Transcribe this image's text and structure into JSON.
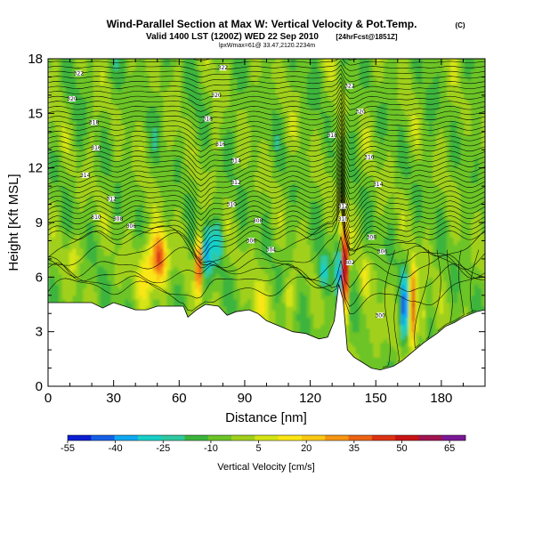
{
  "chart_data": {
    "type": "heatmap",
    "title": "Wind-Parallel Section at Max W: Vertical Velocity & Pot.Temp.",
    "title_mark": "(C)",
    "subtitle_valid": "Valid 1400 LST (1200Z) WED 22 Sep 2010",
    "subtitle_fcst": "[24hrFcst@1851Z]",
    "subtitle_small": "lpxWmax=61@ 33.47,2120.2234m",
    "xlabel": "Distance [nm]",
    "ylabel": "Height [Kft MSL]",
    "x_ticks": [
      0,
      30,
      60,
      90,
      120,
      150,
      180
    ],
    "y_ticks": [
      0,
      3,
      6,
      9,
      12,
      15,
      18
    ],
    "xlim": [
      0,
      200
    ],
    "ylim": [
      0,
      18
    ],
    "colorbar": {
      "label": "Vertical Velocity [cm/s]",
      "tick_labels": [
        "-55",
        "-40",
        "-25",
        "-10",
        "5",
        "20",
        "35",
        "50",
        "65"
      ],
      "tick_values": [
        -55,
        -40,
        -25,
        -10,
        5,
        20,
        35,
        50,
        65
      ],
      "range": [
        -55,
        70
      ],
      "colors": [
        "#0a1ed2",
        "#1660e6",
        "#10a8f0",
        "#18d0c8",
        "#30c8a0",
        "#3cb43c",
        "#6cc428",
        "#a0d01c",
        "#d4e414",
        "#fae614",
        "#fac814",
        "#f59614",
        "#eb6414",
        "#dc3214",
        "#c81414",
        "#a01450",
        "#7a1896"
      ]
    },
    "terrain": [
      [
        0,
        4.6
      ],
      [
        10,
        4.6
      ],
      [
        20,
        4.6
      ],
      [
        25,
        4.3
      ],
      [
        30,
        4.6
      ],
      [
        35,
        4.4
      ],
      [
        40,
        4.2
      ],
      [
        45,
        4.2
      ],
      [
        50,
        4.4
      ],
      [
        55,
        4.4
      ],
      [
        62,
        4.4
      ],
      [
        64,
        3.8
      ],
      [
        68,
        4.2
      ],
      [
        72,
        4.5
      ],
      [
        78,
        4.4
      ],
      [
        82,
        3.9
      ],
      [
        86,
        4.1
      ],
      [
        92,
        4.2
      ],
      [
        96,
        4.0
      ],
      [
        100,
        3.6
      ],
      [
        106,
        3.3
      ],
      [
        112,
        3.0
      ],
      [
        118,
        2.9
      ],
      [
        124,
        2.6
      ],
      [
        128,
        2.7
      ],
      [
        131,
        3.6
      ],
      [
        133,
        5.6
      ],
      [
        135,
        4.8
      ],
      [
        137,
        2.0
      ],
      [
        140,
        1.6
      ],
      [
        144,
        1.3
      ],
      [
        148,
        1.0
      ],
      [
        152,
        0.9
      ],
      [
        158,
        1.1
      ],
      [
        162,
        1.4
      ],
      [
        168,
        2.0
      ],
      [
        172,
        2.4
      ],
      [
        178,
        2.9
      ],
      [
        182,
        3.3
      ],
      [
        186,
        3.5
      ],
      [
        190,
        3.8
      ],
      [
        196,
        4.1
      ],
      [
        200,
        4.2
      ]
    ],
    "contour_labels": [
      {
        "text": "322",
        "x": 14,
        "y": 17.2
      },
      {
        "text": "320",
        "x": 11,
        "y": 15.8
      },
      {
        "text": "318",
        "x": 21,
        "y": 14.5
      },
      {
        "text": "316",
        "x": 22,
        "y": 13.1
      },
      {
        "text": "314",
        "x": 17,
        "y": 11.6
      },
      {
        "text": "312",
        "x": 29,
        "y": 10.3
      },
      {
        "text": "310",
        "x": 22,
        "y": 9.3
      },
      {
        "text": "308",
        "x": 32,
        "y": 9.2
      },
      {
        "text": "306",
        "x": 38,
        "y": 8.8
      },
      {
        "text": "322",
        "x": 80,
        "y": 17.5
      },
      {
        "text": "320",
        "x": 77,
        "y": 16.0
      },
      {
        "text": "318",
        "x": 73,
        "y": 14.7
      },
      {
        "text": "316",
        "x": 79,
        "y": 13.3
      },
      {
        "text": "314",
        "x": 86,
        "y": 12.4
      },
      {
        "text": "312",
        "x": 86,
        "y": 11.2
      },
      {
        "text": "310",
        "x": 84,
        "y": 10.0
      },
      {
        "text": "308",
        "x": 96,
        "y": 9.1
      },
      {
        "text": "306",
        "x": 93,
        "y": 8.0
      },
      {
        "text": "304",
        "x": 102,
        "y": 7.5
      },
      {
        "text": "322",
        "x": 138,
        "y": 16.5
      },
      {
        "text": "320",
        "x": 143,
        "y": 15.1
      },
      {
        "text": "318",
        "x": 130,
        "y": 13.8
      },
      {
        "text": "316",
        "x": 147,
        "y": 12.6
      },
      {
        "text": "314",
        "x": 151,
        "y": 11.1
      },
      {
        "text": "312",
        "x": 135,
        "y": 9.9
      },
      {
        "text": "310",
        "x": 135,
        "y": 9.2
      },
      {
        "text": "308",
        "x": 148,
        "y": 8.2
      },
      {
        "text": "306",
        "x": 153,
        "y": 7.4
      },
      {
        "text": "302",
        "x": 138,
        "y": 6.8
      },
      {
        "text": "300",
        "x": 152,
        "y": 3.9
      }
    ]
  }
}
